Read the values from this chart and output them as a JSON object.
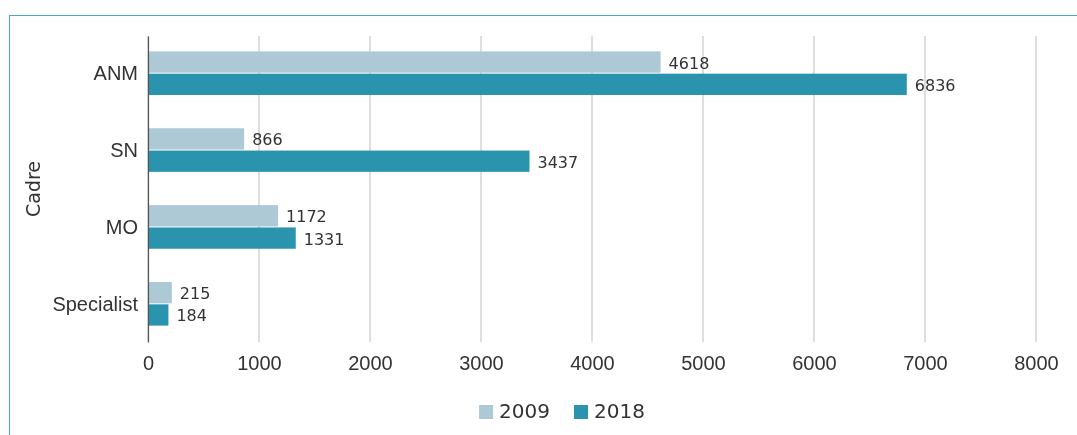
{
  "chart_data": {
    "type": "bar",
    "orientation": "horizontal",
    "ylabel": "Cadre",
    "categories": [
      "ANM",
      "SN",
      "MO",
      "Specialist"
    ],
    "series": [
      {
        "name": "2009",
        "color": "#adc9d6",
        "values": [
          4618,
          866,
          1172,
          215
        ]
      },
      {
        "name": "2018",
        "color": "#2a93ad",
        "values": [
          6836,
          3437,
          1331,
          184
        ]
      }
    ],
    "xlim": [
      0,
      8000
    ],
    "xticks": [
      0,
      1000,
      2000,
      3000,
      4000,
      5000,
      6000,
      7000,
      8000
    ],
    "grid": "x",
    "legend": "bottom",
    "data_labels": true
  }
}
